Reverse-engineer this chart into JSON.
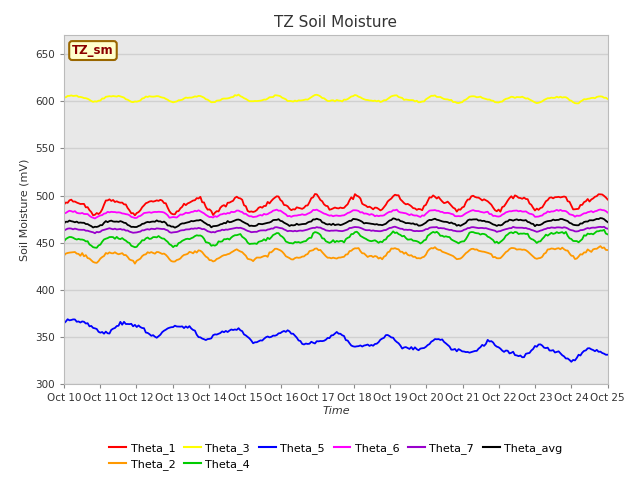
{
  "title": "TZ Soil Moisture",
  "ylabel": "Soil Moisture (mV)",
  "xlabel": "Time",
  "legend_label": "TZ_sm",
  "x_tick_labels": [
    "Oct 10",
    "Oct 11",
    "Oct 12",
    "Oct 13",
    "Oct 14",
    "Oct 15",
    "Oct 16",
    "Oct 17",
    "Oct 18",
    "Oct 19",
    "Oct 20",
    "Oct 21",
    "Oct 22",
    "Oct 23",
    "Oct 24",
    "Oct 25"
  ],
  "ylim": [
    300,
    670
  ],
  "yticks": [
    300,
    350,
    400,
    450,
    500,
    550,
    600,
    650
  ],
  "n_points": 300,
  "series_order": [
    "Theta_1",
    "Theta_2",
    "Theta_3",
    "Theta_4",
    "Theta_5",
    "Theta_6",
    "Theta_7",
    "Theta_avg"
  ],
  "series": {
    "Theta_1": {
      "color": "#ff0000",
      "base": 488,
      "amplitude": 7,
      "freq": 0.9,
      "trend": 0.02
    },
    "Theta_2": {
      "color": "#ff9900",
      "base": 435,
      "amplitude": 5,
      "freq": 0.9,
      "trend": 0.018
    },
    "Theta_3": {
      "color": "#ffff00",
      "base": 603,
      "amplitude": 3,
      "freq": 0.9,
      "trend": -0.003
    },
    "Theta_4": {
      "color": "#00cc00",
      "base": 451,
      "amplitude": 5,
      "freq": 0.9,
      "trend": 0.022
    },
    "Theta_5": {
      "color": "#0000ff",
      "base": 363,
      "amplitude": 6,
      "freq": 0.7,
      "trend": -0.11
    },
    "Theta_6": {
      "color": "#ff00ff",
      "base": 480,
      "amplitude": 3,
      "freq": 0.9,
      "trend": 0.006
    },
    "Theta_7": {
      "color": "#9900cc",
      "base": 463,
      "amplitude": 2,
      "freq": 0.9,
      "trend": 0.006
    },
    "Theta_avg": {
      "color": "#000000",
      "base": 470,
      "amplitude": 3,
      "freq": 0.9,
      "trend": 0.008
    }
  },
  "fig_bg": "#ffffff",
  "plot_bg": "#e8e8e8",
  "grid_color": "#d0d0d0",
  "title_fontsize": 11,
  "axis_fontsize": 8,
  "tick_fontsize": 7.5
}
